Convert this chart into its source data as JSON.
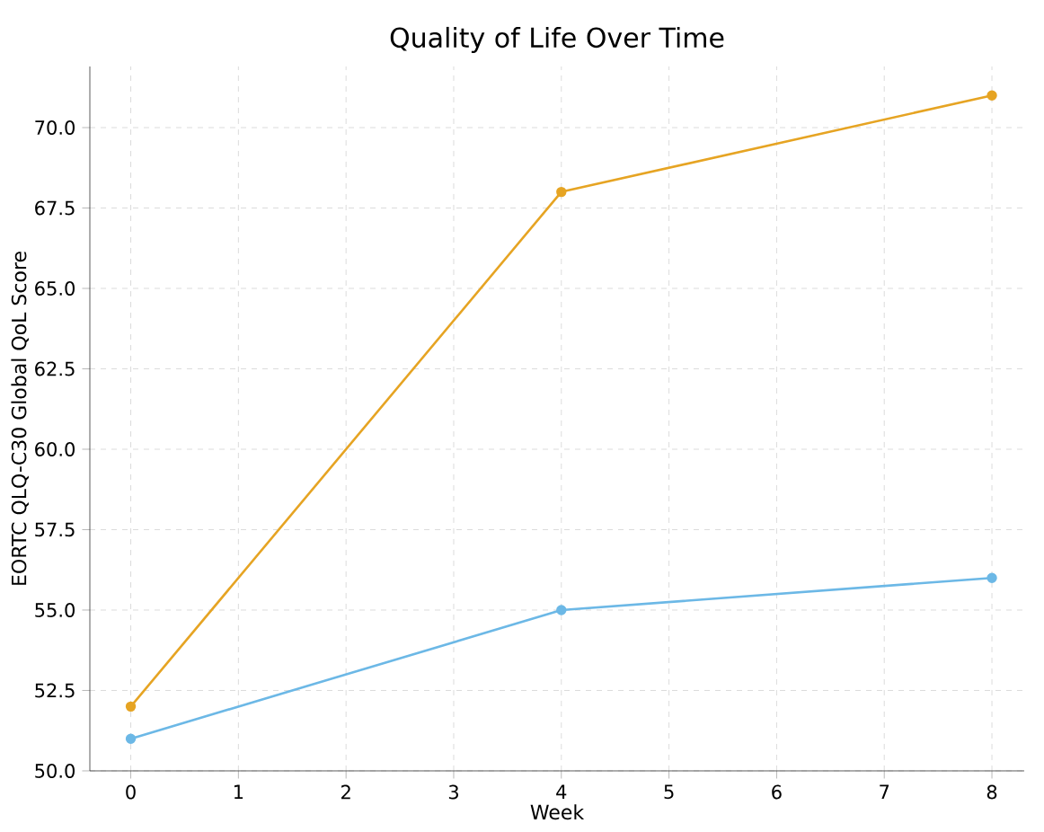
{
  "chart_data": {
    "type": "line",
    "title": "Quality of Life Over Time",
    "xlabel": "Week",
    "ylabel": "EORTC QLQ-C30 Global QoL Score",
    "x": [
      0,
      4,
      8
    ],
    "series": [
      {
        "color": "#e6a423",
        "values": [
          52,
          68,
          71
        ]
      },
      {
        "color": "#6cb8e6",
        "values": [
          51,
          55,
          56
        ]
      }
    ],
    "xlim": [
      -0.38,
      8.3
    ],
    "ylim": [
      50,
      71.9
    ],
    "xticks": [
      0,
      1,
      2,
      3,
      4,
      5,
      6,
      7,
      8
    ],
    "yticks": [
      {
        "value": 50,
        "label": "50.0"
      },
      {
        "value": 52.5,
        "label": "52.5"
      },
      {
        "value": 55,
        "label": "55.0"
      },
      {
        "value": 57.5,
        "label": "57.5"
      },
      {
        "value": 60,
        "label": "60.0"
      },
      {
        "value": 62.5,
        "label": "62.5"
      },
      {
        "value": 65,
        "label": "65.0"
      },
      {
        "value": 67.5,
        "label": "67.5"
      },
      {
        "value": 70,
        "label": "70.0"
      }
    ],
    "grid": true,
    "marker": "circle",
    "line_style": "solid"
  }
}
